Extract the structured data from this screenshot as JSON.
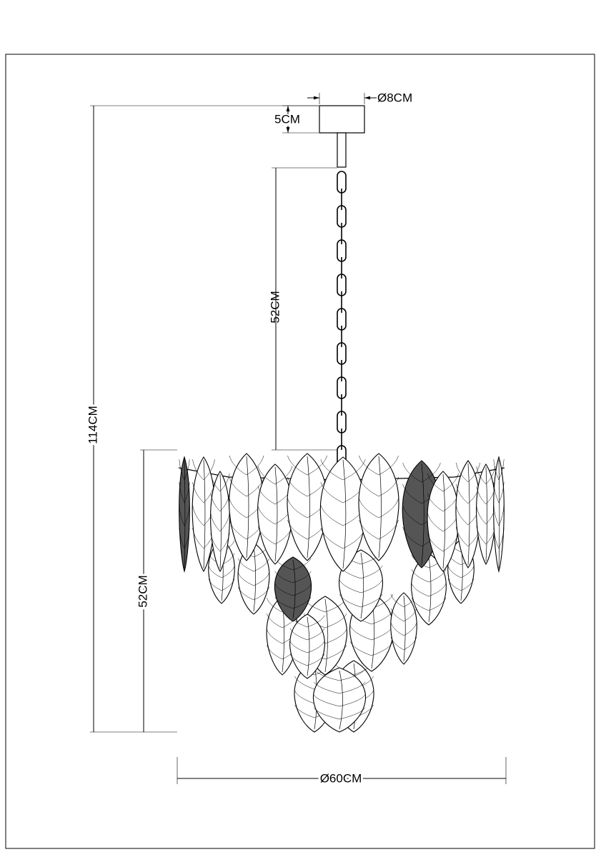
{
  "dimensions": {
    "canopy_diameter": "Ø8CM",
    "canopy_height": "5CM",
    "chain_length": "52CM",
    "total_height": "114CM",
    "body_height": "52CM",
    "body_diameter": "Ø60CM"
  }
}
